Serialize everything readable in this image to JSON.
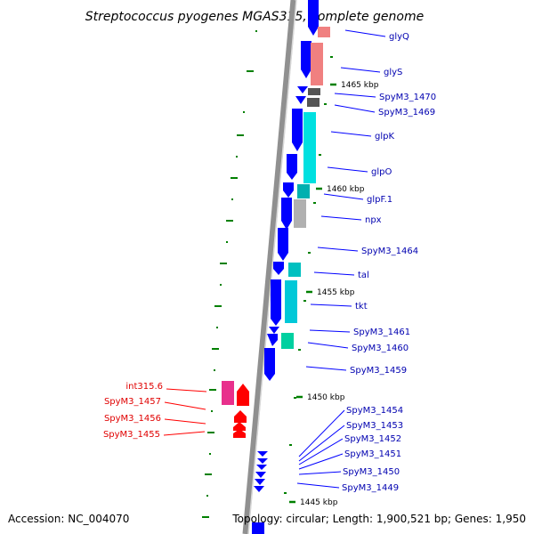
{
  "title": "Streptococcus pyogenes MGAS315, complete genome",
  "footer": {
    "accession": "Accession: NC_004070",
    "topology": "Topology: circular; Length: 1,900,521 bp; Genes: 1,950"
  },
  "colors": {
    "forward_strand_gene": "#0000ff",
    "reverse_strand_gene": "#ff0000",
    "trna": "#f08080",
    "carbohydrate_metabolism": "#00e0e0",
    "amino_acid_metabolism": "#00c8b4",
    "hypothetical": "#b0b0b0",
    "mobile_element": "#ff1493",
    "tick_marks": "#008000",
    "backbone": "#909090"
  },
  "scale_labels": [
    "1465 kbp",
    "1460 kbp",
    "1455 kbp",
    "1450 kbp",
    "1445 kbp"
  ],
  "gene_labels": {
    "right": [
      "glyQ",
      "glyS",
      "SpyM3_1470",
      "SpyM3_1469",
      "glpK",
      "glpO",
      "glpF.1",
      "npx",
      "SpyM3_1464",
      "tal",
      "tkt",
      "SpyM3_1461",
      "SpyM3_1460",
      "SpyM3_1459",
      "SpyM3_1454",
      "SpyM3_1453",
      "SpyM3_1452",
      "SpyM3_1451",
      "SpyM3_1450",
      "SpyM3_1449"
    ],
    "left": [
      "int315.6",
      "SpyM3_1457",
      "SpyM3_1456",
      "SpyM3_1455"
    ]
  }
}
